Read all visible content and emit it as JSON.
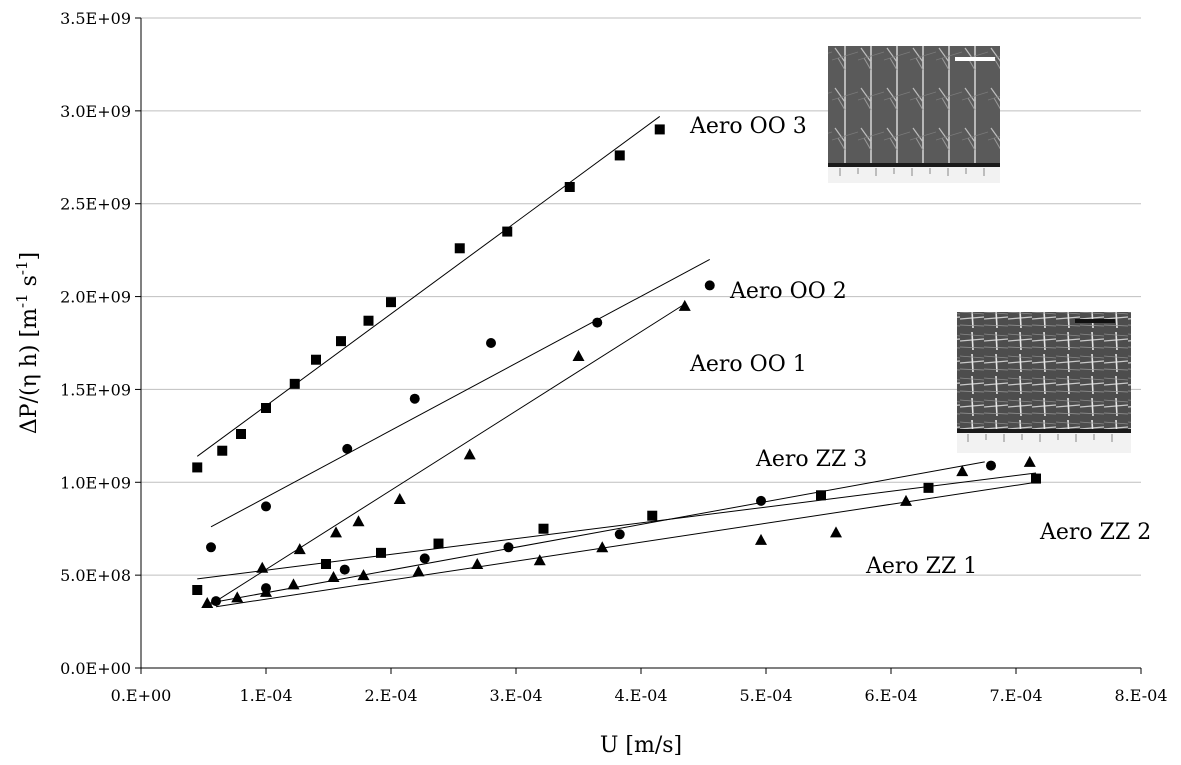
{
  "chart_data": {
    "type": "scatter",
    "xlabel": "U [m/s]",
    "ylabel_main": "ΔP/(η h) [m",
    "ylabel_sup1": "-1",
    "ylabel_mid": " s",
    "ylabel_sup2": "-1",
    "ylabel_end": "]",
    "xlim": [
      0,
      0.0008
    ],
    "ylim": [
      0,
      3500000000
    ],
    "xticks": [
      0,
      0.0001,
      0.0002,
      0.0003,
      0.0004,
      0.0005,
      0.0006,
      0.0007,
      0.0008
    ],
    "xtick_labels": [
      "0.E+00",
      "1.E-04",
      "2.E-04",
      "3.E-04",
      "4.E-04",
      "5.E-04",
      "6.E-04",
      "7.E-04",
      "8.E-04"
    ],
    "yticks": [
      0,
      500000000,
      1000000000,
      1500000000,
      2000000000,
      2500000000,
      3000000000,
      3500000000
    ],
    "ytick_labels": [
      "0.0E+00",
      "5.0E+08",
      "1.0E+09",
      "1.5E+09",
      "2.0E+09",
      "2.5E+09",
      "3.0E+09",
      "3.5E+09"
    ],
    "grid": "horizontal",
    "series": [
      {
        "name": "Aero OO 3",
        "marker": "square",
        "x": [
          4.5e-05,
          6.5e-05,
          8e-05,
          0.0001,
          0.000123,
          0.00014,
          0.00016,
          0.000182,
          0.0002,
          0.000255,
          0.000293,
          0.000343,
          0.000383,
          0.000415
        ],
        "y": [
          1080000000,
          1170000000,
          1260000000,
          1400000000,
          1530000000,
          1660000000,
          1760000000,
          1870000000,
          1970000000,
          2260000000,
          2350000000,
          2590000000,
          2760000000,
          2900000000
        ],
        "fit": [
          [
            4.5e-05,
            1140000000
          ],
          [
            0.000415,
            2970000000
          ]
        ]
      },
      {
        "name": "Aero OO 2",
        "marker": "circle",
        "x": [
          5.6e-05,
          0.0001,
          0.000165,
          0.000219,
          0.00028,
          0.000365,
          0.000455
        ],
        "y": [
          650000000,
          870000000,
          1180000000,
          1450000000,
          1750000000,
          1860000000,
          2060000000
        ],
        "fit": [
          [
            5.6e-05,
            760000000
          ],
          [
            0.000455,
            2200000000
          ]
        ]
      },
      {
        "name": "Aero OO 1",
        "marker": "triangle",
        "x": [
          5.3e-05,
          7.7e-05,
          9.7e-05,
          0.000127,
          0.000156,
          0.000174,
          0.000207,
          0.000263,
          0.00035,
          0.000435
        ],
        "y": [
          350000000,
          380000000,
          540000000,
          640000000,
          730000000,
          790000000,
          910000000,
          1150000000,
          1680000000,
          1950000000
        ],
        "fit": [
          [
            5.3e-05,
            330000000
          ],
          [
            0.000435,
            1960000000
          ]
        ]
      },
      {
        "name": "Aero ZZ 3",
        "marker": "circle",
        "x": [
          6e-05,
          0.0001,
          0.000163,
          0.000227,
          0.000294,
          0.000383,
          0.000496,
          0.00068
        ],
        "y": [
          360000000,
          430000000,
          530000000,
          590000000,
          650000000,
          720000000,
          900000000,
          1090000000
        ],
        "fit": [
          [
            5.5e-05,
            350000000
          ],
          [
            0.000675,
            1110000000
          ]
        ]
      },
      {
        "name": "Aero ZZ 2",
        "marker": "square",
        "x": [
          4.5e-05,
          0.000148,
          0.000192,
          0.000238,
          0.000322,
          0.000409,
          0.000544,
          0.00063,
          0.000716
        ],
        "y": [
          420000000,
          560000000,
          620000000,
          670000000,
          750000000,
          820000000,
          930000000,
          970000000,
          1020000000
        ],
        "fit": [
          [
            4.5e-05,
            480000000
          ],
          [
            0.000716,
            1050000000
          ]
        ]
      },
      {
        "name": "Aero ZZ 1",
        "marker": "triangle",
        "x": [
          0.0001,
          0.000122,
          0.000154,
          0.000178,
          0.000222,
          0.000269,
          0.000319,
          0.000369,
          0.000496,
          0.000556,
          0.000612,
          0.000657,
          0.000711
        ],
        "y": [
          410000000,
          450000000,
          490000000,
          500000000,
          520000000,
          560000000,
          580000000,
          650000000,
          690000000,
          730000000,
          900000000,
          1060000000,
          1110000000
        ],
        "fit": [
          [
            6e-05,
            330000000
          ],
          [
            0.000716,
            1000000000
          ]
        ]
      }
    ]
  },
  "images": [
    {
      "name": "micrograph-oo",
      "caption": ""
    },
    {
      "name": "micrograph-zz",
      "caption": ""
    }
  ]
}
